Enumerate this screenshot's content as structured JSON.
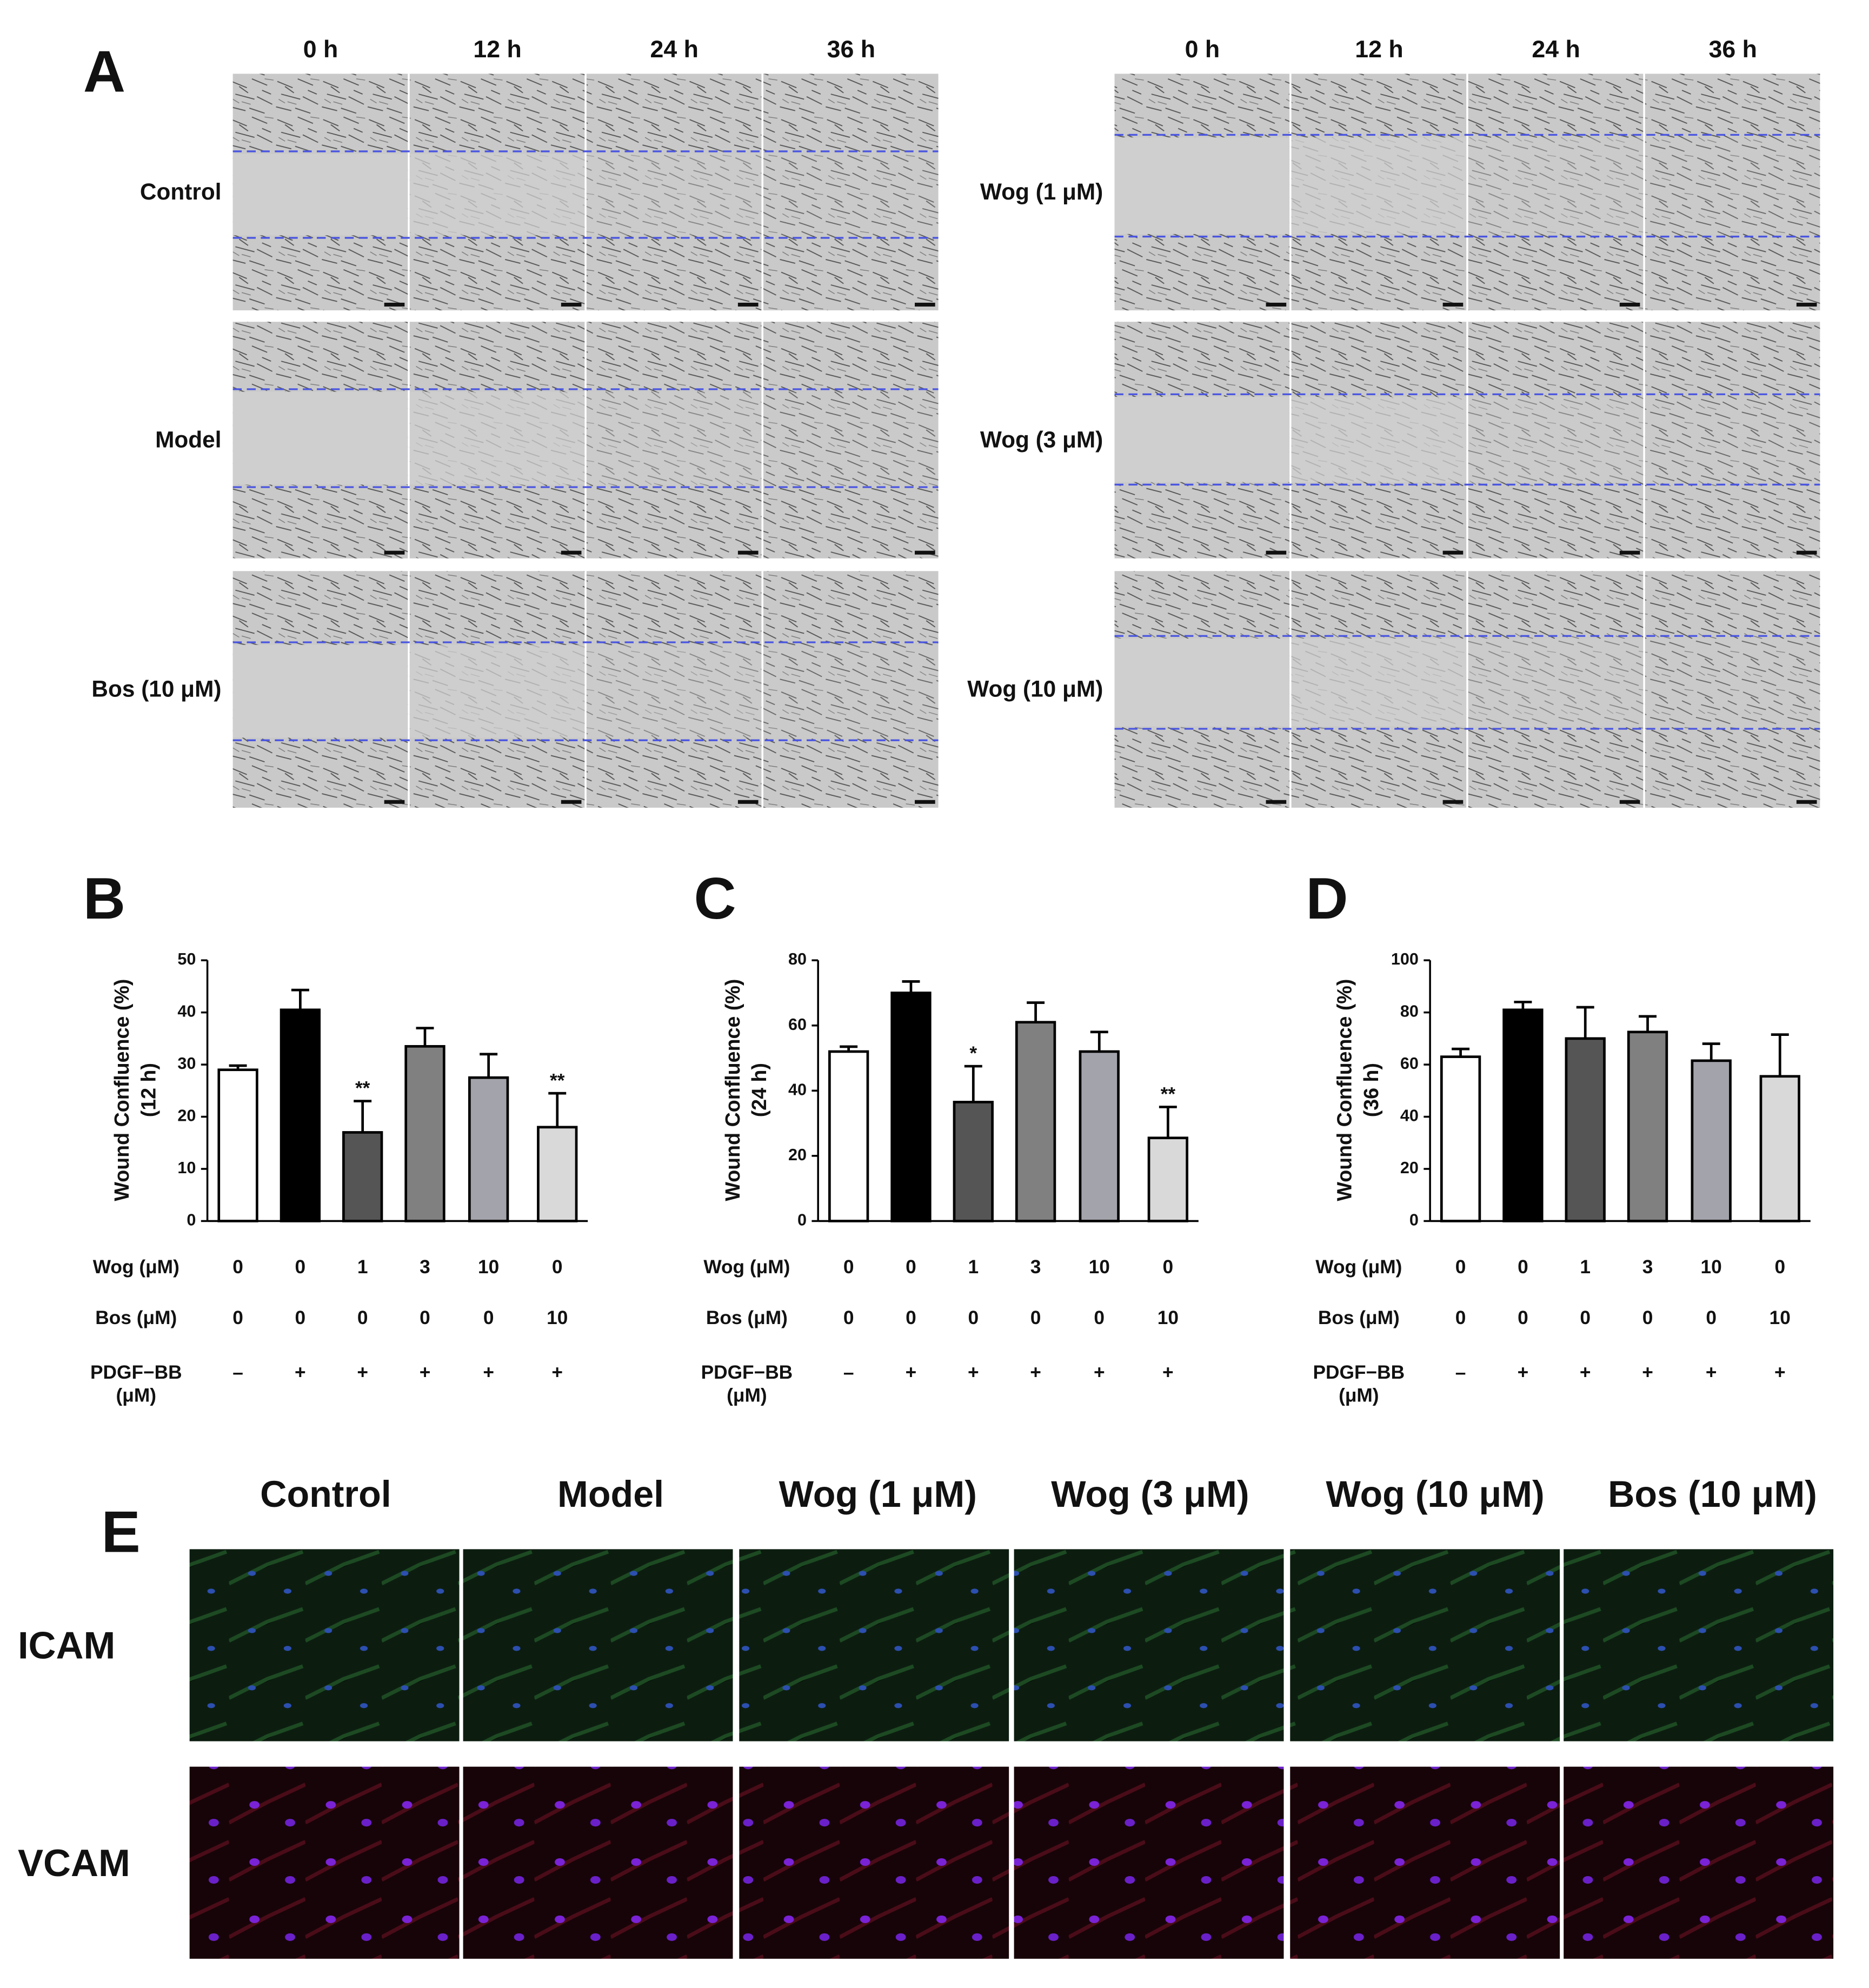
{
  "panel_a": {
    "label": "A",
    "groups": [
      {
        "columns": [
          "0 h",
          "12 h",
          "24 h",
          "36 h"
        ],
        "rows": [
          "Control",
          "Model",
          "Bos (10 μM)"
        ]
      },
      {
        "columns": [
          "0 h",
          "12 h",
          "24 h",
          "36 h"
        ],
        "rows": [
          "Wog (1 μM)",
          "Wog (3 μM)",
          "Wog (10 μM)"
        ]
      }
    ]
  },
  "chart_data": [
    {
      "type": "bar",
      "panel": "B",
      "ylabel": [
        "Wound Confluence (%)",
        "(12 h)"
      ],
      "values": [
        29,
        40.5,
        17,
        33.5,
        27.5,
        18
      ],
      "errors": [
        0.8,
        3.8,
        6,
        3.5,
        4.5,
        6.5
      ],
      "colors": [
        "#ffffff",
        "#000000",
        "#555555",
        "#808080",
        "#a3a3ab",
        "#d9d9d9"
      ],
      "significance": [
        null,
        null,
        "**",
        null,
        null,
        "**"
      ],
      "ylim": [
        0,
        50
      ],
      "yticks": [
        0,
        10,
        20,
        30,
        40,
        50
      ],
      "conditions": [
        {
          "label": [
            "Wog (μM)"
          ],
          "values": [
            0,
            0,
            1,
            3,
            10,
            0
          ]
        },
        {
          "label": [
            "Bos (μM)"
          ],
          "values": [
            0,
            0,
            0,
            0,
            0,
            10
          ]
        },
        {
          "label": [
            "PDGF−BB",
            "(μM)"
          ],
          "values": [
            "–",
            "+",
            "+",
            "+",
            "+",
            "+"
          ]
        }
      ]
    },
    {
      "type": "bar",
      "panel": "C",
      "ylabel": [
        "Wound Confluence (%)",
        "(24 h)"
      ],
      "values": [
        52,
        70,
        36.5,
        61,
        52,
        25.5
      ],
      "errors": [
        1.5,
        3.5,
        11,
        6,
        6,
        9.5
      ],
      "colors": [
        "#ffffff",
        "#000000",
        "#555555",
        "#808080",
        "#a3a3ab",
        "#d9d9d9"
      ],
      "significance": [
        null,
        null,
        "*",
        null,
        null,
        "**"
      ],
      "ylim": [
        0,
        80
      ],
      "yticks": [
        0,
        20,
        40,
        60,
        80
      ],
      "conditions": [
        {
          "label": [
            "Wog (μM)"
          ],
          "values": [
            0,
            0,
            1,
            3,
            10,
            0
          ]
        },
        {
          "label": [
            "Bos (μM)"
          ],
          "values": [
            0,
            0,
            0,
            0,
            0,
            10
          ]
        },
        {
          "label": [
            "PDGF−BB",
            "(μM)"
          ],
          "values": [
            "–",
            "+",
            "+",
            "+",
            "+",
            "+"
          ]
        }
      ]
    },
    {
      "type": "bar",
      "panel": "D",
      "ylabel": [
        "Wound Confluence (%)",
        "(36 h)"
      ],
      "values": [
        63,
        81,
        70,
        72.5,
        61.5,
        55.5
      ],
      "errors": [
        3,
        3,
        12,
        6,
        6.5,
        16
      ],
      "colors": [
        "#ffffff",
        "#000000",
        "#555555",
        "#808080",
        "#a3a3ab",
        "#d9d9d9"
      ],
      "significance": [
        null,
        null,
        null,
        null,
        null,
        null
      ],
      "ylim": [
        0,
        100
      ],
      "yticks": [
        0,
        20,
        40,
        60,
        80,
        100
      ],
      "conditions": [
        {
          "label": [
            "Wog (μM)"
          ],
          "values": [
            0,
            0,
            1,
            3,
            10,
            0
          ]
        },
        {
          "label": [
            "Bos (μM)"
          ],
          "values": [
            0,
            0,
            0,
            0,
            0,
            10
          ]
        },
        {
          "label": [
            "PDGF−BB",
            "(μM)"
          ],
          "values": [
            "–",
            "+",
            "+",
            "+",
            "+",
            "+"
          ]
        }
      ]
    }
  ],
  "panel_e": {
    "label": "E",
    "columns": [
      "Control",
      "Model",
      "Wog (1 μM)",
      "Wog (3 μM)",
      "Wog (10 μM)",
      "Bos (10 μM)"
    ],
    "rows": [
      "ICAM",
      "VCAM"
    ]
  }
}
